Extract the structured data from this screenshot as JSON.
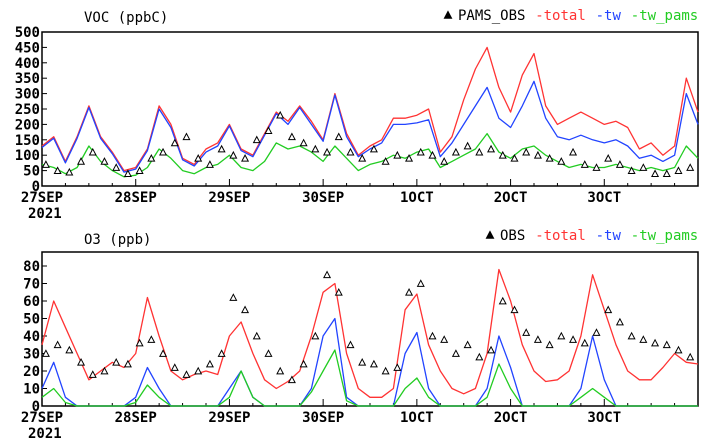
{
  "chart_data": [
    {
      "type": "line",
      "title": "VOC (ppbC)",
      "x_unit": "hours since 27SEP 2021 00Z",
      "x_tick_labels": [
        "27SEP",
        "28SEP",
        "29SEP",
        "30SEP",
        "1OCT",
        "2OCT",
        "3OCT"
      ],
      "x_tick_hours": [
        0,
        24,
        48,
        72,
        96,
        120,
        144
      ],
      "year_label": "2021",
      "xlim": [
        0,
        168
      ],
      "ylim": [
        0,
        500
      ],
      "y_ticks": [
        0,
        50,
        100,
        150,
        200,
        250,
        300,
        350,
        400,
        450,
        500
      ],
      "legend": [
        {
          "label": "PAMS_OBS",
          "color": "#000000",
          "marker": "triangle"
        },
        {
          "label": "total",
          "color": "#ff3333"
        },
        {
          "label": "tw",
          "color": "#2244ff"
        },
        {
          "label": "tw_pams",
          "color": "#22cc22"
        }
      ],
      "series": [
        {
          "name": "total",
          "color": "#ff3333",
          "x": [
            0,
            3,
            6,
            9,
            12,
            15,
            18,
            21,
            24,
            27,
            30,
            33,
            36,
            39,
            42,
            45,
            48,
            51,
            54,
            57,
            60,
            63,
            66,
            69,
            72,
            75,
            78,
            81,
            84,
            87,
            90,
            93,
            96,
            99,
            102,
            105,
            108,
            111,
            114,
            117,
            120,
            123,
            126,
            129,
            132,
            135,
            138,
            141,
            144,
            147,
            150,
            153,
            156,
            159,
            162,
            165,
            168
          ],
          "y": [
            130,
            160,
            80,
            160,
            260,
            160,
            110,
            50,
            60,
            120,
            260,
            200,
            90,
            70,
            120,
            140,
            200,
            120,
            100,
            170,
            240,
            210,
            260,
            210,
            150,
            300,
            170,
            100,
            130,
            150,
            220,
            220,
            230,
            250,
            110,
            160,
            280,
            380,
            450,
            320,
            240,
            360,
            430,
            260,
            200,
            220,
            240,
            220,
            200,
            210,
            190,
            120,
            140,
            100,
            130,
            350,
            240
          ]
        },
        {
          "name": "tw",
          "color": "#2244ff",
          "x": [
            0,
            3,
            6,
            9,
            12,
            15,
            18,
            21,
            24,
            27,
            30,
            33,
            36,
            39,
            42,
            45,
            48,
            51,
            54,
            57,
            60,
            63,
            66,
            69,
            72,
            75,
            78,
            81,
            84,
            87,
            90,
            93,
            96,
            99,
            102,
            105,
            108,
            111,
            114,
            117,
            120,
            123,
            126,
            129,
            132,
            135,
            138,
            141,
            144,
            147,
            150,
            153,
            156,
            159,
            162,
            165,
            168
          ],
          "y": [
            125,
            155,
            75,
            155,
            255,
            155,
            105,
            45,
            55,
            115,
            250,
            190,
            85,
            65,
            110,
            130,
            195,
            115,
            95,
            165,
            235,
            200,
            255,
            200,
            145,
            295,
            160,
            95,
            120,
            140,
            200,
            200,
            205,
            215,
            95,
            140,
            200,
            260,
            320,
            220,
            190,
            260,
            340,
            220,
            160,
            150,
            165,
            150,
            140,
            150,
            130,
            90,
            100,
            80,
            100,
            300,
            200
          ]
        },
        {
          "name": "tw_pams",
          "color": "#22cc22",
          "x": [
            0,
            3,
            6,
            9,
            12,
            15,
            18,
            21,
            24,
            27,
            30,
            33,
            36,
            39,
            42,
            45,
            48,
            51,
            54,
            57,
            60,
            63,
            66,
            69,
            72,
            75,
            78,
            81,
            84,
            87,
            90,
            93,
            96,
            99,
            102,
            105,
            108,
            111,
            114,
            117,
            120,
            123,
            126,
            129,
            132,
            135,
            138,
            141,
            144,
            147,
            150,
            153,
            156,
            159,
            162,
            165,
            168
          ],
          "y": [
            70,
            60,
            40,
            60,
            130,
            80,
            50,
            30,
            35,
            60,
            120,
            90,
            50,
            40,
            60,
            70,
            100,
            60,
            50,
            80,
            140,
            120,
            130,
            110,
            80,
            130,
            90,
            50,
            70,
            80,
            100,
            90,
            110,
            120,
            60,
            80,
            100,
            120,
            170,
            110,
            90,
            120,
            130,
            100,
            80,
            60,
            70,
            60,
            60,
            70,
            60,
            50,
            60,
            50,
            60,
            130,
            90
          ]
        },
        {
          "name": "PAMS_OBS",
          "color": "#000000",
          "marker": "triangle",
          "x": [
            1,
            4,
            7,
            10,
            13,
            16,
            19,
            22,
            25,
            28,
            31,
            34,
            37,
            40,
            43,
            46,
            49,
            52,
            55,
            58,
            61,
            64,
            67,
            70,
            73,
            76,
            79,
            82,
            85,
            88,
            91,
            94,
            97,
            100,
            103,
            106,
            109,
            112,
            115,
            118,
            121,
            124,
            127,
            130,
            133,
            136,
            139,
            142,
            145,
            148,
            151,
            154,
            157,
            160,
            163,
            166
          ],
          "y": [
            70,
            50,
            45,
            80,
            110,
            80,
            60,
            40,
            50,
            90,
            110,
            140,
            160,
            90,
            70,
            120,
            100,
            90,
            150,
            180,
            230,
            160,
            140,
            120,
            110,
            160,
            110,
            90,
            120,
            80,
            100,
            90,
            110,
            100,
            80,
            110,
            130,
            110,
            120,
            100,
            90,
            110,
            100,
            90,
            80,
            110,
            70,
            60,
            90,
            70,
            50,
            60,
            40,
            40,
            50,
            60
          ]
        }
      ]
    },
    {
      "type": "line",
      "title": "O3 (ppb)",
      "x_unit": "hours since 27SEP 2021 00Z",
      "x_tick_labels": [
        "27SEP",
        "28SEP",
        "29SEP",
        "30SEP",
        "1OCT",
        "2OCT",
        "3OCT"
      ],
      "x_tick_hours": [
        0,
        24,
        48,
        72,
        96,
        120,
        144
      ],
      "year_label": "2021",
      "xlim": [
        0,
        168
      ],
      "ylim": [
        0,
        88
      ],
      "y_ticks": [
        0,
        10,
        20,
        30,
        40,
        50,
        60,
        70,
        80
      ],
      "legend": [
        {
          "label": "OBS",
          "color": "#000000",
          "marker": "triangle"
        },
        {
          "label": "total",
          "color": "#ff3333"
        },
        {
          "label": "tw",
          "color": "#2244ff"
        },
        {
          "label": "tw_pams",
          "color": "#22cc22"
        }
      ],
      "series": [
        {
          "name": "total",
          "color": "#ff3333",
          "x": [
            0,
            3,
            6,
            9,
            12,
            15,
            18,
            21,
            24,
            27,
            30,
            33,
            36,
            39,
            42,
            45,
            48,
            51,
            54,
            57,
            60,
            63,
            66,
            69,
            72,
            75,
            78,
            81,
            84,
            87,
            90,
            93,
            96,
            99,
            102,
            105,
            108,
            111,
            114,
            117,
            120,
            123,
            126,
            129,
            132,
            135,
            138,
            141,
            144,
            147,
            150,
            153,
            156,
            159,
            162,
            165,
            168
          ],
          "y": [
            35,
            60,
            45,
            30,
            15,
            20,
            25,
            22,
            30,
            62,
            40,
            20,
            15,
            18,
            20,
            18,
            40,
            48,
            30,
            15,
            10,
            14,
            20,
            40,
            65,
            70,
            30,
            10,
            5,
            5,
            10,
            55,
            64,
            35,
            20,
            10,
            7,
            10,
            30,
            78,
            60,
            35,
            20,
            14,
            15,
            20,
            40,
            75,
            55,
            35,
            20,
            15,
            15,
            22,
            30,
            25,
            24
          ]
        },
        {
          "name": "tw",
          "color": "#2244ff",
          "x": [
            0,
            3,
            6,
            9,
            12,
            15,
            18,
            21,
            24,
            27,
            30,
            33,
            36,
            39,
            42,
            45,
            48,
            51,
            54,
            57,
            60,
            63,
            66,
            69,
            72,
            75,
            78,
            81,
            84,
            87,
            90,
            93,
            96,
            99,
            102,
            105,
            108,
            111,
            114,
            117,
            120,
            123,
            126,
            129,
            132,
            135,
            138,
            141,
            144,
            147,
            150,
            153,
            156,
            159,
            162,
            165,
            168
          ],
          "y": [
            10,
            25,
            5,
            0,
            0,
            0,
            0,
            0,
            5,
            22,
            10,
            0,
            0,
            0,
            0,
            0,
            10,
            20,
            5,
            0,
            0,
            0,
            0,
            10,
            40,
            50,
            5,
            0,
            0,
            0,
            0,
            30,
            42,
            10,
            0,
            0,
            0,
            0,
            10,
            40,
            22,
            0,
            0,
            0,
            0,
            0,
            10,
            40,
            15,
            0,
            0,
            0,
            0,
            0,
            0,
            0,
            0
          ]
        },
        {
          "name": "tw_pams",
          "color": "#22cc22",
          "x": [
            0,
            3,
            6,
            9,
            12,
            15,
            18,
            21,
            24,
            27,
            30,
            33,
            36,
            39,
            42,
            45,
            48,
            51,
            54,
            57,
            60,
            63,
            66,
            69,
            72,
            75,
            78,
            81,
            84,
            87,
            90,
            93,
            96,
            99,
            102,
            105,
            108,
            111,
            114,
            117,
            120,
            123,
            126,
            129,
            132,
            135,
            138,
            141,
            144,
            147,
            150,
            153,
            156,
            159,
            162,
            165,
            168
          ],
          "y": [
            5,
            10,
            2,
            0,
            0,
            0,
            0,
            0,
            2,
            12,
            5,
            0,
            0,
            0,
            0,
            0,
            5,
            20,
            5,
            0,
            0,
            0,
            0,
            8,
            20,
            32,
            3,
            0,
            0,
            0,
            0,
            10,
            16,
            5,
            0,
            0,
            0,
            0,
            5,
            24,
            10,
            0,
            0,
            0,
            0,
            0,
            5,
            10,
            5,
            0,
            0,
            0,
            0,
            0,
            0,
            0,
            0
          ]
        },
        {
          "name": "OBS",
          "color": "#000000",
          "marker": "triangle",
          "x": [
            1,
            4,
            7,
            10,
            13,
            16,
            19,
            22,
            25,
            28,
            31,
            34,
            37,
            40,
            43,
            46,
            49,
            52,
            55,
            58,
            61,
            64,
            67,
            70,
            73,
            76,
            79,
            82,
            85,
            88,
            91,
            94,
            97,
            100,
            103,
            106,
            109,
            112,
            115,
            118,
            121,
            124,
            127,
            130,
            133,
            136,
            139,
            142,
            145,
            148,
            151,
            154,
            157,
            160,
            163,
            166
          ],
          "y": [
            30,
            35,
            32,
            25,
            18,
            20,
            25,
            24,
            36,
            38,
            30,
            22,
            18,
            20,
            24,
            30,
            62,
            55,
            40,
            30,
            20,
            15,
            24,
            40,
            75,
            65,
            35,
            25,
            24,
            20,
            22,
            65,
            70,
            40,
            38,
            30,
            35,
            28,
            32,
            60,
            55,
            42,
            38,
            35,
            40,
            38,
            36,
            42,
            55,
            48,
            40,
            38,
            36,
            35,
            32,
            28
          ]
        }
      ]
    }
  ]
}
